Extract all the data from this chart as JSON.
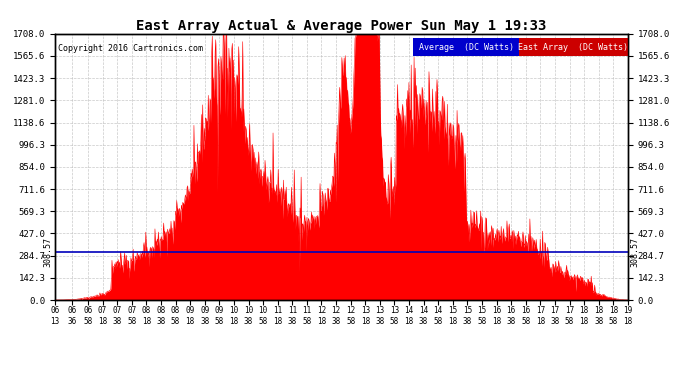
{
  "title": "East Array Actual & Average Power Sun May 1 19:33",
  "copyright": "Copyright 2016 Cartronics.com",
  "legend_avg": "Average  (DC Watts)",
  "legend_east": "East Array  (DC Watts)",
  "avg_value": 308.57,
  "ymax": 1708.0,
  "yticks": [
    0.0,
    142.3,
    284.7,
    427.0,
    569.3,
    711.6,
    854.0,
    996.3,
    1138.6,
    1281.0,
    1423.3,
    1565.6,
    1708.0
  ],
  "bg_color": "#ffffff",
  "fill_color": "#ff0000",
  "avg_line_color": "#0000bb",
  "grid_color": "#bbbbbb",
  "legend_avg_bg": "#0000cc",
  "legend_east_bg": "#cc0000",
  "xtick_labels": [
    "06:13",
    "06:36",
    "06:58",
    "07:18",
    "07:38",
    "07:58",
    "08:18",
    "08:38",
    "08:58",
    "09:18",
    "09:38",
    "09:58",
    "10:18",
    "10:38",
    "10:58",
    "11:18",
    "11:38",
    "11:58",
    "12:18",
    "12:38",
    "12:58",
    "13:18",
    "13:38",
    "13:58",
    "14:18",
    "14:38",
    "14:58",
    "15:18",
    "15:38",
    "15:58",
    "16:18",
    "16:38",
    "16:58",
    "17:18",
    "17:38",
    "17:58",
    "18:18",
    "18:38",
    "18:58",
    "19:18"
  ]
}
